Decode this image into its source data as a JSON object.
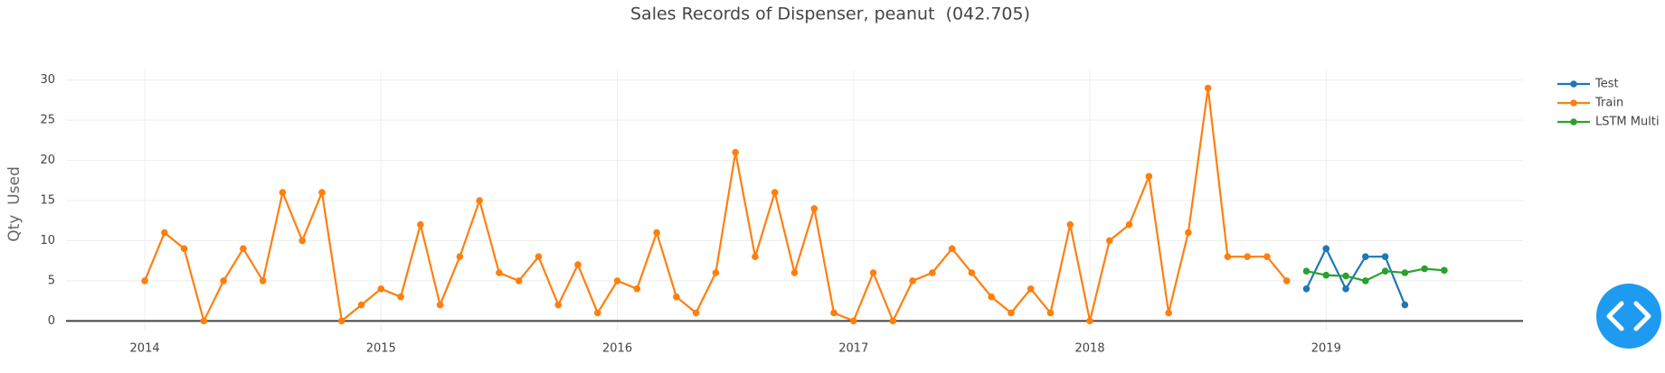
{
  "chart_data": {
    "type": "line",
    "title": "Sales Records of Dispenser, peanut  (042.705)",
    "y_label": "Qty  Used",
    "xlim": [
      "2013-09",
      "2019-11"
    ],
    "xticks": [
      "2014",
      "2015",
      "2016",
      "2017",
      "2018",
      "2019"
    ],
    "ylim": [
      -1.2,
      31.2
    ],
    "yticks": [
      0,
      5,
      10,
      15,
      20,
      25,
      30
    ],
    "grid": true,
    "zero_line": true,
    "legend": "right",
    "series": [
      {
        "name": "Test",
        "color": "#1f77b4",
        "x": [
          "2018-12",
          "2019-01",
          "2019-02",
          "2019-03",
          "2019-04",
          "2019-05"
        ],
        "values": [
          4,
          9,
          4,
          8,
          8,
          2
        ]
      },
      {
        "name": "Train",
        "color": "#ff7f0e",
        "x": [
          "2014-01",
          "2014-02",
          "2014-03",
          "2014-04",
          "2014-05",
          "2014-06",
          "2014-07",
          "2014-08",
          "2014-09",
          "2014-10",
          "2014-11",
          "2014-12",
          "2015-01",
          "2015-02",
          "2015-03",
          "2015-04",
          "2015-05",
          "2015-06",
          "2015-07",
          "2015-08",
          "2015-09",
          "2015-10",
          "2015-11",
          "2015-12",
          "2016-01",
          "2016-02",
          "2016-03",
          "2016-04",
          "2016-05",
          "2016-06",
          "2016-07",
          "2016-08",
          "2016-09",
          "2016-10",
          "2016-11",
          "2016-12",
          "2017-01",
          "2017-02",
          "2017-03",
          "2017-04",
          "2017-05",
          "2017-06",
          "2017-07",
          "2017-08",
          "2017-09",
          "2017-10",
          "2017-11",
          "2017-12",
          "2018-01",
          "2018-02",
          "2018-03",
          "2018-04",
          "2018-05",
          "2018-06",
          "2018-07",
          "2018-08",
          "2018-09",
          "2018-10",
          "2018-11"
        ],
        "values": [
          5,
          11,
          9,
          0,
          5,
          9,
          5,
          16,
          10,
          16,
          0,
          2,
          4,
          3,
          12,
          2,
          8,
          15,
          6,
          5,
          8,
          2,
          7,
          1,
          5,
          4,
          11,
          3,
          1,
          6,
          21,
          8,
          16,
          6,
          14,
          1,
          0,
          6,
          0,
          5,
          6,
          9,
          6,
          3,
          1,
          4,
          1,
          12,
          0,
          10,
          12,
          18,
          1,
          11,
          29,
          8,
          8,
          8,
          5
        ]
      },
      {
        "name": "LSTM Multi",
        "color": "#2ca02c",
        "x": [
          "2018-12",
          "2019-01",
          "2019-02",
          "2019-03",
          "2019-04",
          "2019-05",
          "2019-06",
          "2019-07"
        ],
        "values": [
          6.2,
          5.7,
          5.6,
          5,
          6.2,
          6,
          6.5,
          6.3
        ]
      }
    ]
  }
}
